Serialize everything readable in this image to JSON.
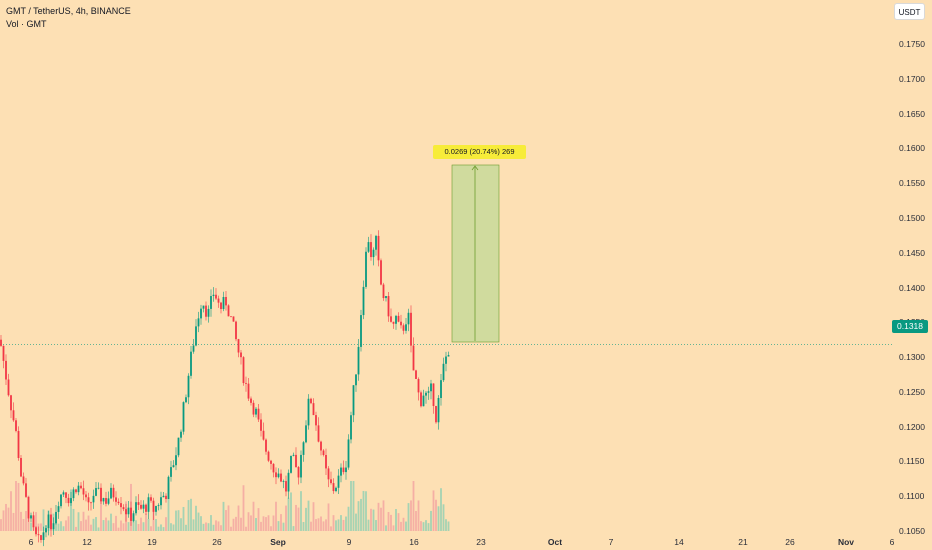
{
  "legend": {
    "symbol_line": "GMT / TetherUS, 4h, BINANCE",
    "volume_line": "Vol · GMT"
  },
  "currency_button": "USDT",
  "price_axis": {
    "labels": [
      "0.1750",
      "0.1700",
      "0.1650",
      "0.1600",
      "0.1550",
      "0.1500",
      "0.1450",
      "0.1400",
      "0.1350",
      "0.1300",
      "0.1250",
      "0.1200",
      "0.1150",
      "0.1100",
      "0.1050"
    ],
    "current_price": "0.1318"
  },
  "time_axis": {
    "labels": [
      {
        "text": "6",
        "bold": false
      },
      {
        "text": "12",
        "bold": false
      },
      {
        "text": "19",
        "bold": false
      },
      {
        "text": "26",
        "bold": false
      },
      {
        "text": "Sep",
        "bold": true
      },
      {
        "text": "9",
        "bold": false
      },
      {
        "text": "16",
        "bold": false
      },
      {
        "text": "23",
        "bold": false
      },
      {
        "text": "Oct",
        "bold": true
      },
      {
        "text": "7",
        "bold": false
      },
      {
        "text": "14",
        "bold": false
      },
      {
        "text": "21",
        "bold": false
      },
      {
        "text": "26",
        "bold": false
      },
      {
        "text": "Nov",
        "bold": true
      },
      {
        "text": "6",
        "bold": false
      }
    ]
  },
  "measure_tool": {
    "label": "0.0269 (20.74%) 269",
    "from_price": 0.1295,
    "to_price": 0.1564
  },
  "colors": {
    "background": "#fde0b4",
    "up": "#089981",
    "down": "#f23645",
    "measure_fill": "#c8d99a",
    "measure_border": "#6d9b2e"
  },
  "chart_data": {
    "type": "candlestick",
    "symbol": "GMT / TetherUS",
    "interval": "4h",
    "exchange": "BINANCE",
    "y_range": [
      0.1015,
      0.178
    ],
    "last_price": 0.1318,
    "path_points": [
      [
        0,
        0.1325
      ],
      [
        8,
        0.1255
      ],
      [
        16,
        0.119
      ],
      [
        22,
        0.112
      ],
      [
        28,
        0.108
      ],
      [
        34,
        0.1045
      ],
      [
        40,
        0.103
      ],
      [
        46,
        0.1065
      ],
      [
        52,
        0.106
      ],
      [
        58,
        0.1095
      ],
      [
        64,
        0.111
      ],
      [
        70,
        0.1095
      ],
      [
        76,
        0.1115
      ],
      [
        82,
        0.111
      ],
      [
        88,
        0.108
      ],
      [
        94,
        0.1105
      ],
      [
        100,
        0.11
      ],
      [
        106,
        0.1095
      ],
      [
        112,
        0.1105
      ],
      [
        118,
        0.11
      ],
      [
        124,
        0.1085
      ],
      [
        130,
        0.107
      ],
      [
        136,
        0.1085
      ],
      [
        142,
        0.108
      ],
      [
        148,
        0.109
      ],
      [
        154,
        0.108
      ],
      [
        160,
        0.1095
      ],
      [
        166,
        0.1105
      ],
      [
        172,
        0.114
      ],
      [
        178,
        0.1175
      ],
      [
        184,
        0.123
      ],
      [
        190,
        0.129
      ],
      [
        196,
        0.1345
      ],
      [
        202,
        0.1385
      ],
      [
        208,
        0.136
      ],
      [
        214,
        0.1395
      ],
      [
        220,
        0.137
      ],
      [
        226,
        0.138
      ],
      [
        232,
        0.135
      ],
      [
        238,
        0.131
      ],
      [
        244,
        0.127
      ],
      [
        250,
        0.124
      ],
      [
        256,
        0.122
      ],
      [
        262,
        0.118
      ],
      [
        268,
        0.116
      ],
      [
        274,
        0.114
      ],
      [
        280,
        0.113
      ],
      [
        286,
        0.111
      ],
      [
        292,
        0.1155
      ],
      [
        298,
        0.113
      ],
      [
        304,
        0.119
      ],
      [
        310,
        0.1245
      ],
      [
        316,
        0.1205
      ],
      [
        322,
        0.116
      ],
      [
        328,
        0.112
      ],
      [
        334,
        0.111
      ],
      [
        340,
        0.113
      ],
      [
        346,
        0.115
      ],
      [
        352,
        0.123
      ],
      [
        358,
        0.131
      ],
      [
        364,
        0.142
      ],
      [
        368,
        0.1475
      ],
      [
        372,
        0.144
      ],
      [
        376,
        0.1465
      ],
      [
        380,
        0.141
      ],
      [
        384,
        0.1385
      ],
      [
        388,
        0.137
      ],
      [
        392,
        0.134
      ],
      [
        396,
        0.1355
      ],
      [
        400,
        0.1335
      ],
      [
        404,
        0.1345
      ],
      [
        408,
        0.1365
      ],
      [
        412,
        0.129
      ],
      [
        416,
        0.1265
      ],
      [
        420,
        0.1235
      ],
      [
        424,
        0.125
      ],
      [
        428,
        0.124
      ],
      [
        432,
        0.1255
      ],
      [
        436,
        0.1215
      ],
      [
        440,
        0.125
      ],
      [
        444,
        0.129
      ],
      [
        448,
        0.131
      ],
      [
        450,
        0.1318
      ]
    ]
  }
}
